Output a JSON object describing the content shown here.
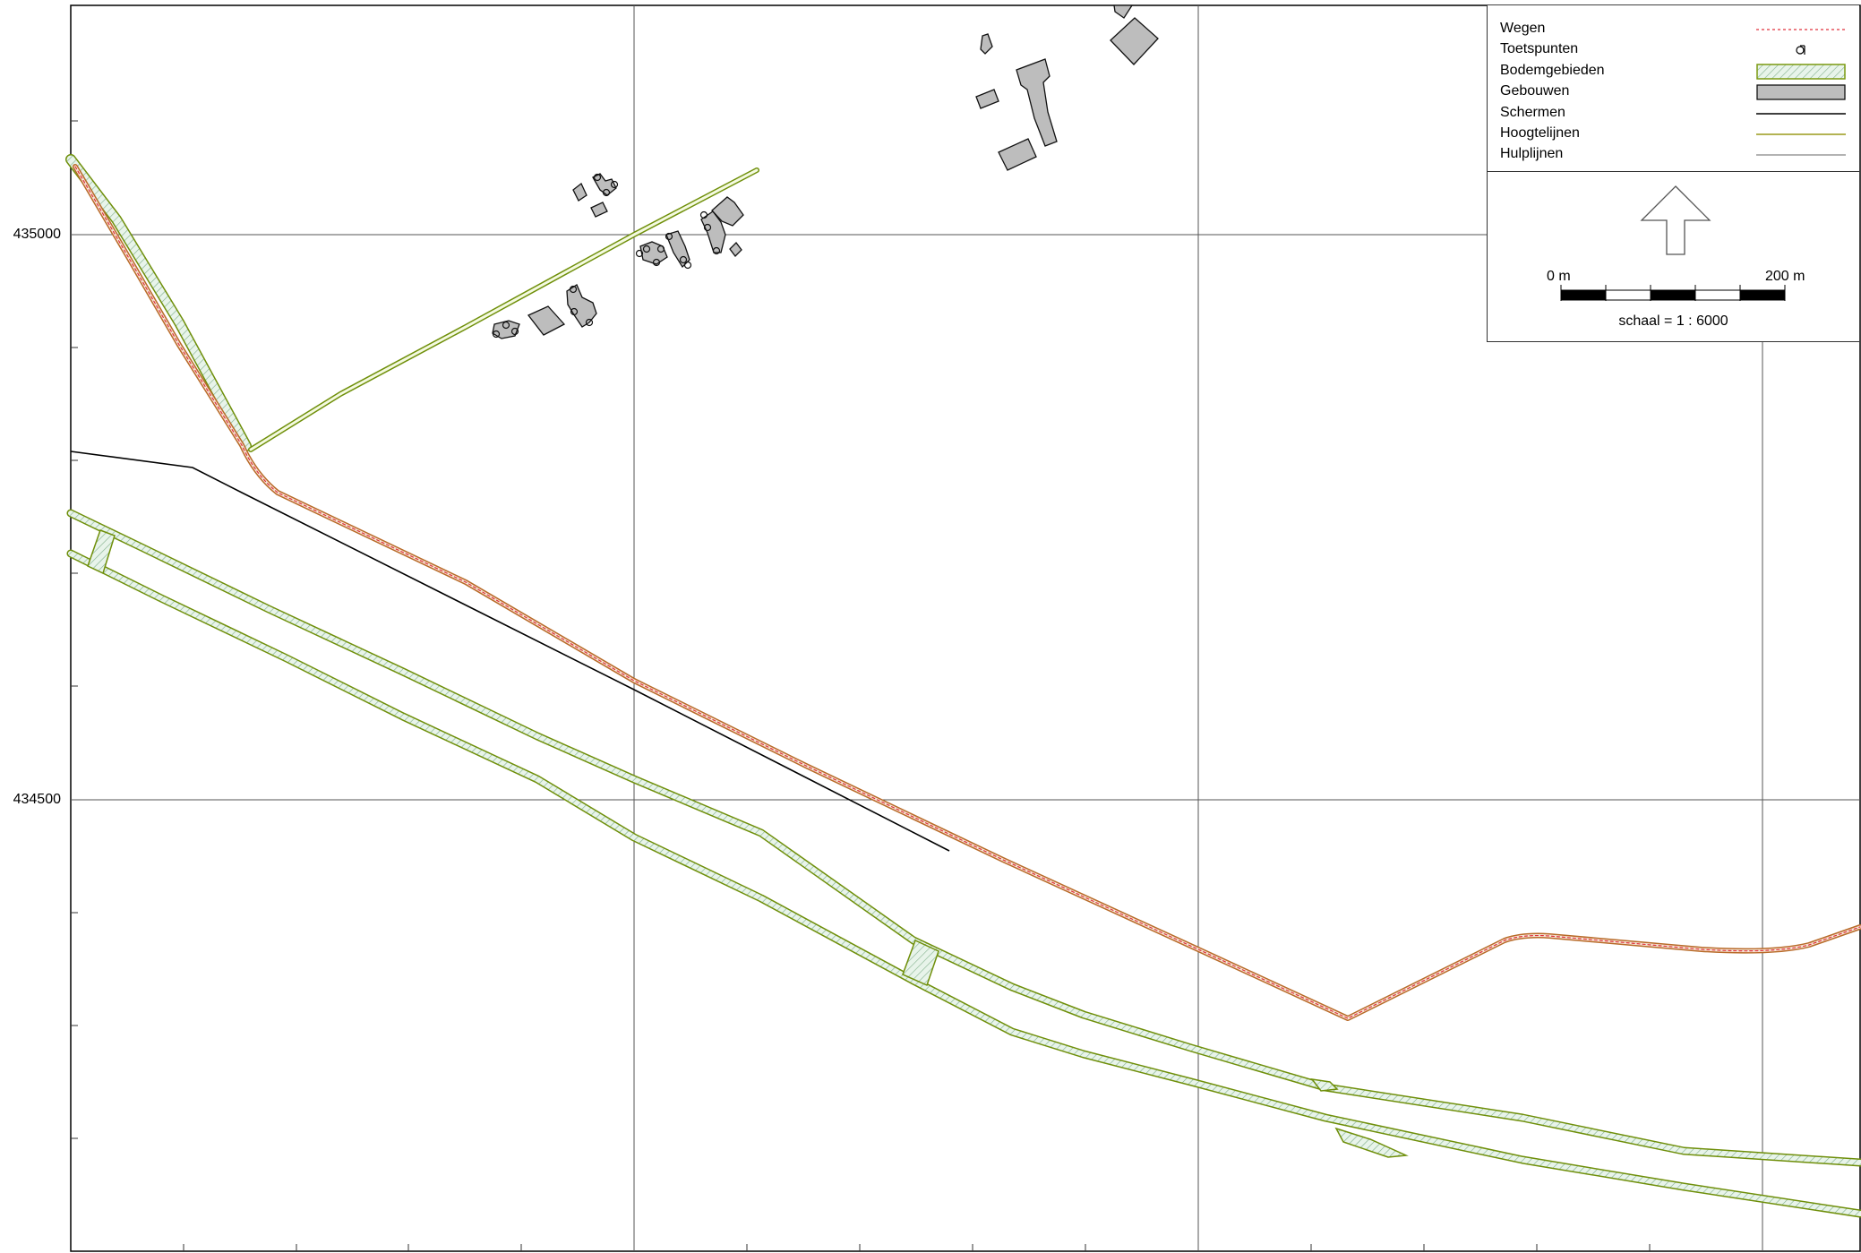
{
  "map": {
    "y_axis_labels": [
      {
        "id": "y-435000",
        "text": "435000"
      },
      {
        "id": "y-434500",
        "text": "434500"
      }
    ]
  },
  "legend": {
    "items": [
      {
        "key": "wegen",
        "label": "Wegen",
        "symbol": "dashed-red-line-icon",
        "color": "#e0323c"
      },
      {
        "key": "toetspunten",
        "label": "Toetspunten",
        "symbol": "toetspunt-marker-icon",
        "color": "#000000"
      },
      {
        "key": "bodemgebieden",
        "label": "Bodemgebieden",
        "symbol": "hatched-area-icon",
        "color": "#8aa020"
      },
      {
        "key": "gebouwen",
        "label": "Gebouwen",
        "symbol": "building-box-icon",
        "color": "#bdbdbd"
      },
      {
        "key": "schermen",
        "label": "Schermen",
        "symbol": "black-line-icon",
        "color": "#000000"
      },
      {
        "key": "hoogtelijnen",
        "label": "Hoogtelijnen",
        "symbol": "olive-line-icon",
        "color": "#9a9a1a"
      },
      {
        "key": "hulplijnen",
        "label": "Hulplijnen",
        "symbol": "grey-line-icon",
        "color": "#9a9a9a"
      }
    ],
    "scale": {
      "start_label": "0 m",
      "end_label": "200 m",
      "caption": "schaal = 1 : 6000"
    }
  },
  "colors": {
    "road": "#e0323c",
    "road_edge": "#c07030",
    "soil_edge": "#7a9a10",
    "soil_fill": "#dbeedd",
    "building": "#bdbdbd",
    "grid": "#555555"
  }
}
